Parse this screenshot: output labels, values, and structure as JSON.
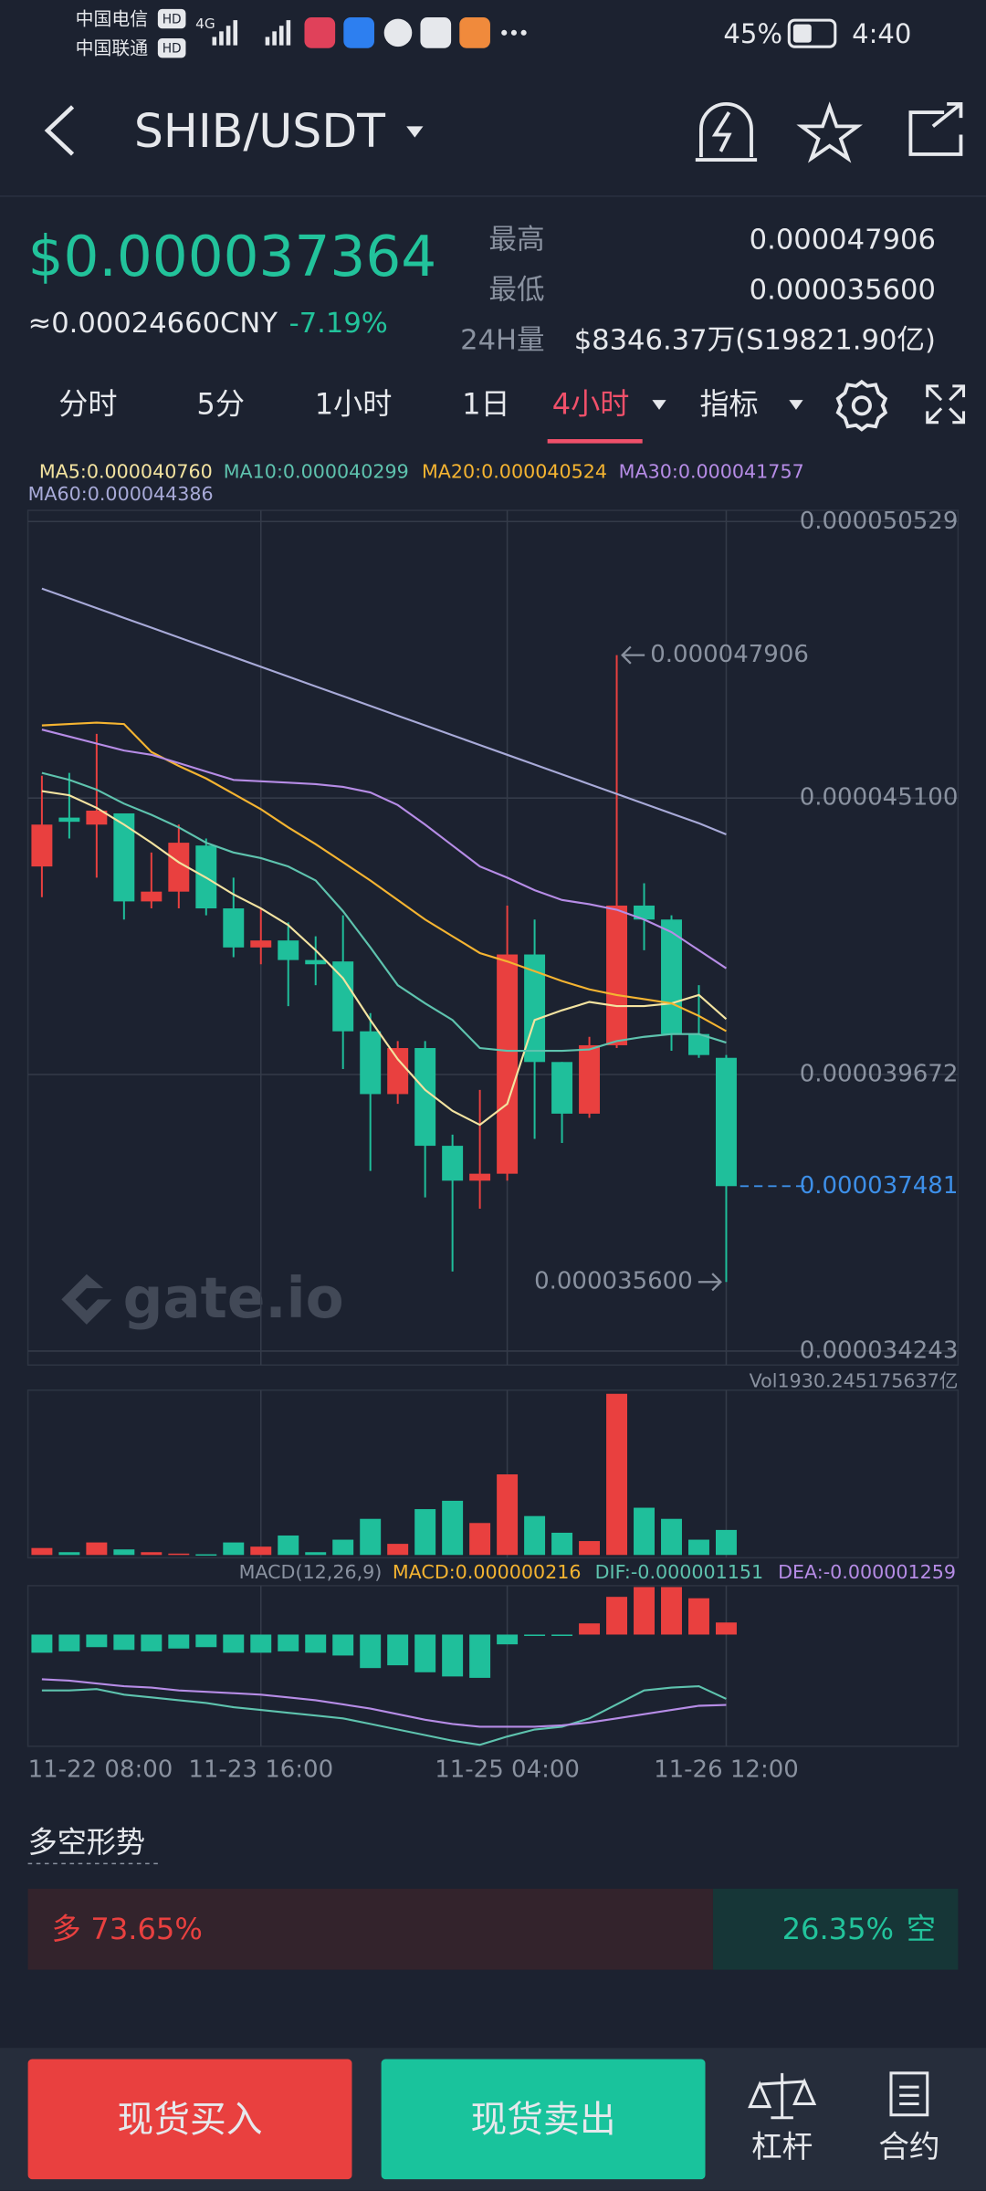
{
  "status_bar": {
    "carrier_1": "中国电信",
    "carrier_2": "中国联通",
    "hd_1": "HD",
    "hd_2": "HD",
    "network": "4G",
    "battery": "45%",
    "time": "4:40"
  },
  "header": {
    "pair": "SHIB/USDT"
  },
  "ticker": {
    "price": "$0.000037364",
    "cny": "≈0.00024660CNY",
    "change": "-7.19%",
    "high_label": "最高",
    "high": "0.000047906",
    "low_label": "最低",
    "low": "0.000035600",
    "volume_label": "24H量",
    "volume": "$8346.37万(S19821.90亿)"
  },
  "tabs": {
    "items": [
      "分时",
      "5分",
      "1小时",
      "1日",
      "4小时",
      "指标"
    ],
    "active": 4
  },
  "chart_data": {
    "type": "candlestick",
    "categories": [
      "11-22 08:00",
      null,
      null,
      null,
      null,
      null,
      null,
      null,
      "11-23 16:00",
      null,
      null,
      null,
      null,
      null,
      null,
      null,
      null,
      "11-25 04:00",
      null,
      null,
      null,
      null,
      null,
      null,
      null,
      "11-26 12:00"
    ],
    "open": [
      4.3757e-05,
      4.4716e-05,
      4.4579e-05,
      4.4799e-05,
      4.3071e-05,
      4.3263e-05,
      4.4168e-05,
      4.2934e-05,
      4.2167e-05,
      4.2304e-05,
      4.192e-05,
      4.1892e-05,
      4.0521e-05,
      3.9288e-05,
      4.0192e-05,
      3.8273e-05,
      3.7588e-05,
      3.7725e-05,
      4.2029e-05,
      3.9918e-05,
      3.8904e-05,
      4.0247e-05,
      4.2989e-05,
      4.2715e-05,
      4.0467e-05,
      4e-05
    ],
    "high": [
      4.5539e-05,
      4.5594e-05,
      4.6361e-05,
      4.4799e-05,
      4.4031e-05,
      4.4579e-05,
      4.4305e-05,
      4.3537e-05,
      4.2934e-05,
      4.266e-05,
      4.2386e-05,
      4.2797e-05,
      4.0878e-05,
      4.0329e-05,
      4.0329e-05,
      3.8492e-05,
      3.937e-05,
      4.2989e-05,
      4.2715e-05,
      3.9918e-05,
      4.0412e-05,
      4.7906e-05,
      4.3428e-05,
      4.2797e-05,
      4.1426e-05,
      4.0055e-05
    ],
    "low": [
      4.3154e-05,
      4.4305e-05,
      4.3537e-05,
      4.2715e-05,
      4.2934e-05,
      4.2934e-05,
      4.2797e-05,
      4.1975e-05,
      4.1837e-05,
      4.1015e-05,
      4.1426e-05,
      3.9781e-05,
      3.778e-05,
      3.9096e-05,
      3.7259e-05,
      3.5806e-05,
      3.7039e-05,
      3.7588e-05,
      3.841e-05,
      3.8328e-05,
      3.8822e-05,
      4.0192e-05,
      4.2112e-05,
      4.0138e-05,
      4e-05,
      3.56e-05
    ],
    "close": [
      4.4579e-05,
      4.4634e-05,
      4.4853e-05,
      4.3071e-05,
      4.3263e-05,
      4.4223e-05,
      4.2934e-05,
      4.2167e-05,
      4.2304e-05,
      4.192e-05,
      4.1837e-05,
      4.0521e-05,
      3.9288e-05,
      4.0192e-05,
      3.8273e-05,
      3.7588e-05,
      3.7725e-05,
      4.2029e-05,
      3.9918e-05,
      3.8904e-05,
      4.0247e-05,
      4.2989e-05,
      4.2715e-05,
      4.0467e-05,
      4.0055e-05,
      3.7481e-05
    ],
    "up_color": "#e9403f",
    "down_color": "#1fbf9b",
    "ylim": [
      3.4243e-05,
      5.0529e-05
    ],
    "yticks": [
      {
        "value": 5.0529e-05,
        "label": "0.000050529"
      },
      {
        "value": 4.51e-05,
        "label": "0.000045100"
      },
      {
        "value": 3.9672e-05,
        "label": "0.000039672"
      },
      {
        "value": 3.4243e-05,
        "label": "0.000034243"
      }
    ],
    "grid": true,
    "ma_series": [
      {
        "name": "MA5:0.000040760",
        "color": "#f3e3a0",
        "values": [
          4.5237e-05,
          4.5155e-05,
          4.4908e-05,
          4.4579e-05,
          4.4223e-05,
          4.3839e-05,
          4.3537e-05,
          4.3208e-05,
          4.2934e-05,
          4.2605e-05,
          4.2112e-05,
          4.1563e-05,
          4.0741e-05,
          3.9973e-05,
          3.937e-05,
          3.8959e-05,
          3.8684e-05,
          3.9096e-05,
          4.0741e-05,
          4.0933e-05,
          4.1097e-05,
          4.1015e-05,
          4.1015e-05,
          4.107e-05,
          4.1234e-05,
          4.076e-05
        ]
      },
      {
        "name": "MA10:0.000040299",
        "color": "#5ec3ae",
        "values": [
          4.5594e-05,
          4.5457e-05,
          4.5265e-05,
          4.499e-05,
          4.4771e-05,
          4.4524e-05,
          4.4223e-05,
          4.4031e-05,
          4.3921e-05,
          4.3757e-05,
          4.3482e-05,
          4.2879e-05,
          4.2167e-05,
          4.1426e-05,
          4.107e-05,
          4.0741e-05,
          4.0192e-05,
          4.0137e-05,
          4.0137e-05,
          4.0137e-05,
          4.0165e-05,
          4.0329e-05,
          4.0412e-05,
          4.0467e-05,
          4.0467e-05,
          4.0299e-05
        ]
      },
      {
        "name": "MA20:0.000040524",
        "color": "#f5b431",
        "values": [
          4.6526e-05,
          4.6553e-05,
          4.6581e-05,
          4.6553e-05,
          4.6005e-05,
          4.5731e-05,
          4.5484e-05,
          4.5183e-05,
          4.4881e-05,
          4.4524e-05,
          4.4195e-05,
          4.3839e-05,
          4.3482e-05,
          4.3099e-05,
          4.2715e-05,
          4.2386e-05,
          4.2057e-05,
          4.1892e-05,
          4.17e-05,
          4.1508e-05,
          4.1344e-05,
          4.1234e-05,
          4.1152e-05,
          4.107e-05,
          4.0823e-05,
          4.0524e-05
        ]
      },
      {
        "name": "MA30:0.000041757",
        "color": "#b68ce6",
        "values": [
          4.6444e-05,
          4.6307e-05,
          4.617e-05,
          4.6033e-05,
          4.595e-05,
          4.5786e-05,
          4.5621e-05,
          4.5457e-05,
          4.5429e-05,
          4.5402e-05,
          4.5374e-05,
          4.532e-05,
          4.521e-05,
          4.4963e-05,
          4.4579e-05,
          4.4168e-05,
          4.3757e-05,
          4.3537e-05,
          4.3291e-05,
          4.3099e-05,
          4.3016e-05,
          4.2907e-05,
          4.2715e-05,
          4.2468e-05,
          4.2112e-05,
          4.1757e-05
        ]
      },
      {
        "name": "MA60:0.000044386",
        "color": "#a8aad8",
        "values": [
          4.9213e-05,
          4.9021e-05,
          4.8829e-05,
          4.8637e-05,
          4.8445e-05,
          4.8253e-05,
          4.8061e-05,
          4.7869e-05,
          4.7677e-05,
          4.7485e-05,
          4.7293e-05,
          4.7101e-05,
          4.6909e-05,
          4.6717e-05,
          4.6525e-05,
          4.6333e-05,
          4.6141e-05,
          4.5949e-05,
          4.5757e-05,
          4.5565e-05,
          4.5373e-05,
          4.5181e-05,
          4.4989e-05,
          4.4797e-05,
          4.4605e-05,
          4.4386e-05
        ]
      }
    ],
    "high_marker": {
      "value": 4.7906e-05,
      "label": "0.000047906"
    },
    "low_marker": {
      "value": 3.56e-05,
      "label": "0.000035600"
    },
    "last_price": {
      "value": 3.7481e-05,
      "label": "0.000037481",
      "color": "#3d8fe8"
    },
    "watermark": "gate.io",
    "volume": {
      "name": "Vol1930.245175637亿",
      "ylim": [
        0,
        12500
      ],
      "values": [
        536,
        214,
        965,
        429,
        214,
        107,
        54,
        965,
        643,
        1501,
        214,
        1179,
        2787,
        858,
        3538,
        4181,
        2466,
        6218,
        3002,
        1715,
        1072,
        12435,
        3645,
        2787,
        1179,
        1930.245175637
      ]
    },
    "macd": {
      "title": "MACD(12,26,9)",
      "ylim": [
        -2e-06,
        8.75e-07
      ],
      "histogram": {
        "name": "MACD:0.000000216",
        "color": "#f5b431",
        "values": [
          -3.25e-07,
          -3e-07,
          -2.25e-07,
          -2.75e-07,
          -3e-07,
          -2.5e-07,
          -2.25e-07,
          -3.25e-07,
          -3.25e-07,
          -3e-07,
          -3.25e-07,
          -3.75e-07,
          -6e-07,
          -5.5e-07,
          -6.75e-07,
          -7.5e-07,
          -7.75e-07,
          -1.75e-07,
          -2.5e-08,
          -2.5e-08,
          2e-07,
          6.75e-07,
          8.5e-07,
          8.5e-07,
          6.5e-07,
          2.16e-07
        ]
      },
      "lines": [
        {
          "name": "DIF:-0.000001151",
          "color": "#5ec3ae",
          "values": [
            -1e-06,
            -1e-06,
            -9.75e-07,
            -1.075e-06,
            -1.125e-06,
            -1.175e-06,
            -1.225e-06,
            -1.3e-06,
            -1.35e-06,
            -1.4e-06,
            -1.45e-06,
            -1.5e-06,
            -1.6e-06,
            -1.7e-06,
            -1.8e-06,
            -1.9e-06,
            -1.975e-06,
            -1.825e-06,
            -1.7e-06,
            -1.65e-06,
            -1.5e-06,
            -1.25e-06,
            -1e-06,
            -9.5e-07,
            -9.25e-07,
            -1.151e-06
          ]
        },
        {
          "name": "DEA:-0.000001259",
          "color": "#b68ce6",
          "values": [
            -8e-07,
            -8.25e-07,
            -8.75e-07,
            -9.25e-07,
            -9.5e-07,
            -1e-06,
            -1.025e-06,
            -1.05e-06,
            -1.075e-06,
            -1.125e-06,
            -1.175e-06,
            -1.25e-06,
            -1.325e-06,
            -1.425e-06,
            -1.525e-06,
            -1.6e-06,
            -1.65e-06,
            -1.65e-06,
            -1.65e-06,
            -1.625e-06,
            -1.575e-06,
            -1.5e-06,
            -1.425e-06,
            -1.35e-06,
            -1.275e-06,
            -1.259e-06
          ]
        }
      ]
    }
  },
  "sentiment": {
    "title": "多空形势",
    "long_name": "多",
    "long": 73.65,
    "long_label": "73.65%",
    "short_name": "空",
    "short": 26.35,
    "short_label": "26.35%"
  },
  "bottom_bar": {
    "buy": "现货买入",
    "sell": "现货卖出",
    "margin": "杠杆",
    "futures": "合约"
  }
}
